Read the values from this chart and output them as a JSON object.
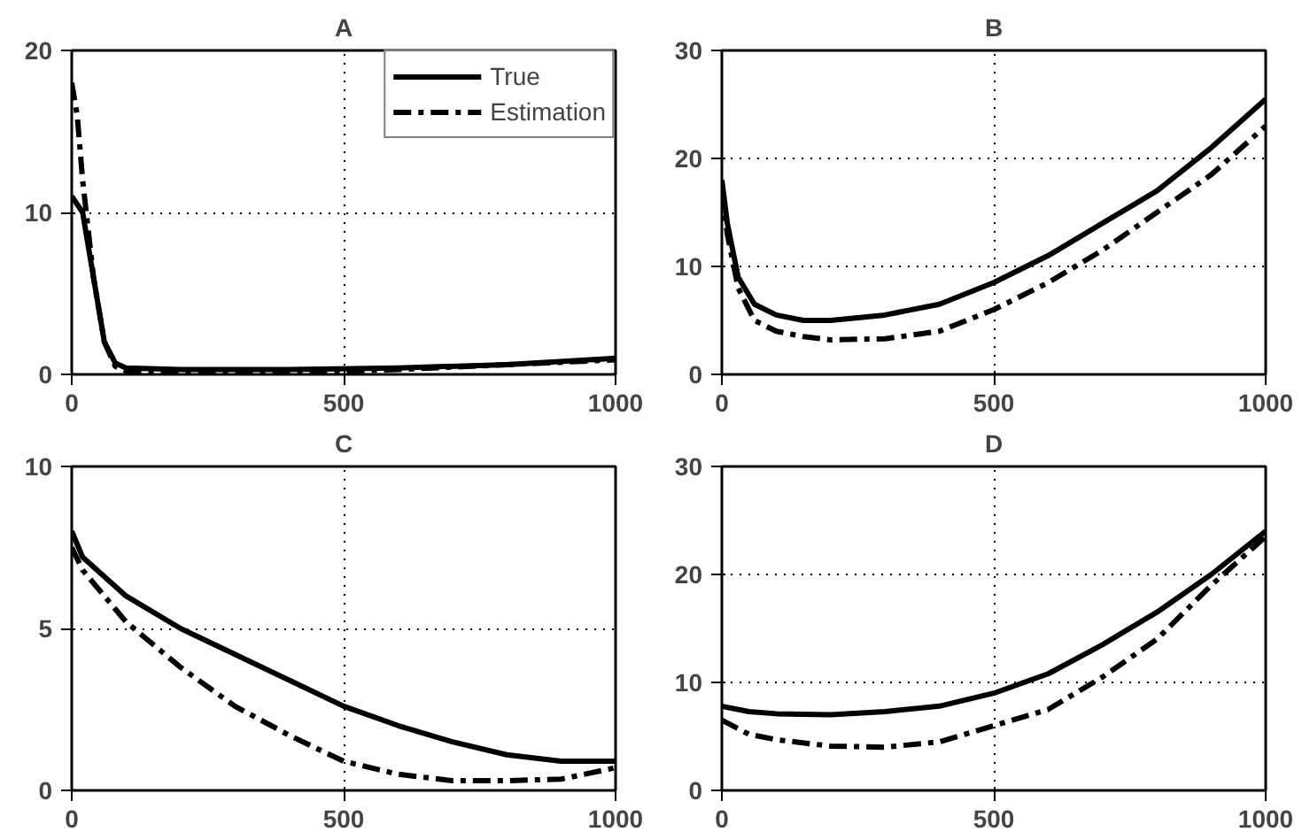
{
  "chart_data": [
    {
      "type": "line",
      "title": "A",
      "xlim": [
        0,
        1000
      ],
      "xticks": [
        0,
        500,
        1000
      ],
      "ylim": [
        0,
        20
      ],
      "yticks": [
        0,
        10,
        20
      ],
      "grid": true,
      "legend": "top right",
      "series": [
        {
          "name": "True",
          "color": "#000000",
          "line_style": "solid",
          "x": [
            0,
            20,
            40,
            60,
            80,
            100,
            200,
            400,
            600,
            800,
            1000
          ],
          "values": [
            11,
            10,
            6,
            2,
            0.7,
            0.4,
            0.3,
            0.3,
            0.4,
            0.6,
            1
          ]
        },
        {
          "name": "Estimation",
          "color": "#000000",
          "line_style": "dashdot",
          "x": [
            0,
            10,
            20,
            40,
            60,
            80,
            100,
            200,
            400,
            600,
            800,
            1000
          ],
          "values": [
            18,
            16,
            12,
            6,
            2,
            0.5,
            0.2,
            0.1,
            0.1,
            0.3,
            0.6,
            0.9
          ]
        }
      ]
    },
    {
      "type": "line",
      "title": "B",
      "xlim": [
        0,
        1000
      ],
      "xticks": [
        0,
        500,
        1000
      ],
      "ylim": [
        0,
        30
      ],
      "yticks": [
        0,
        10,
        20,
        30
      ],
      "grid": true,
      "series": [
        {
          "color": "#000000",
          "line_style": "solid",
          "x": [
            0,
            10,
            30,
            60,
            100,
            150,
            200,
            300,
            400,
            500,
            600,
            700,
            800,
            900,
            1000
          ],
          "values": [
            18,
            14,
            9,
            6.5,
            5.5,
            5,
            5,
            5.5,
            6.5,
            8.5,
            11,
            14,
            17,
            21,
            25.5
          ]
        },
        {
          "color": "#000000",
          "line_style": "dashdot",
          "x": [
            0,
            10,
            30,
            60,
            100,
            150,
            200,
            300,
            400,
            500,
            600,
            700,
            800,
            900,
            1000
          ],
          "values": [
            17,
            13,
            8,
            5,
            4,
            3.5,
            3.2,
            3.3,
            4,
            6,
            8.5,
            11.5,
            15,
            18.5,
            23
          ]
        }
      ]
    },
    {
      "type": "line",
      "title": "C",
      "xlim": [
        0,
        1000
      ],
      "xticks": [
        0,
        500,
        1000
      ],
      "ylim": [
        0,
        10
      ],
      "yticks": [
        0,
        5,
        10
      ],
      "grid": true,
      "series": [
        {
          "color": "#000000",
          "line_style": "solid",
          "x": [
            0,
            20,
            100,
            200,
            300,
            400,
            500,
            600,
            700,
            800,
            900,
            1000
          ],
          "values": [
            8,
            7.2,
            6,
            5,
            4.2,
            3.4,
            2.6,
            2,
            1.5,
            1.1,
            0.9,
            0.9
          ]
        },
        {
          "color": "#000000",
          "line_style": "dashdot",
          "x": [
            0,
            20,
            100,
            200,
            300,
            400,
            500,
            600,
            700,
            800,
            900,
            1000
          ],
          "values": [
            7.5,
            6.8,
            5.2,
            3.8,
            2.6,
            1.7,
            0.9,
            0.5,
            0.3,
            0.3,
            0.35,
            0.7
          ]
        }
      ]
    },
    {
      "type": "line",
      "title": "D",
      "xlim": [
        0,
        1000
      ],
      "xticks": [
        0,
        500,
        1000
      ],
      "ylim": [
        0,
        30
      ],
      "yticks": [
        0,
        10,
        20,
        30
      ],
      "grid": true,
      "series": [
        {
          "color": "#000000",
          "line_style": "solid",
          "x": [
            0,
            50,
            100,
            200,
            300,
            400,
            500,
            600,
            700,
            800,
            900,
            1000
          ],
          "values": [
            7.8,
            7.3,
            7.1,
            7,
            7.3,
            7.8,
            9,
            10.8,
            13.5,
            16.5,
            20,
            24
          ]
        },
        {
          "color": "#000000",
          "line_style": "dashdot",
          "x": [
            0,
            50,
            100,
            200,
            300,
            400,
            500,
            600,
            700,
            800,
            900,
            1000
          ],
          "values": [
            6.5,
            5.2,
            4.7,
            4.1,
            4,
            4.5,
            6,
            7.5,
            10.5,
            14,
            19,
            23.5
          ]
        }
      ]
    }
  ]
}
